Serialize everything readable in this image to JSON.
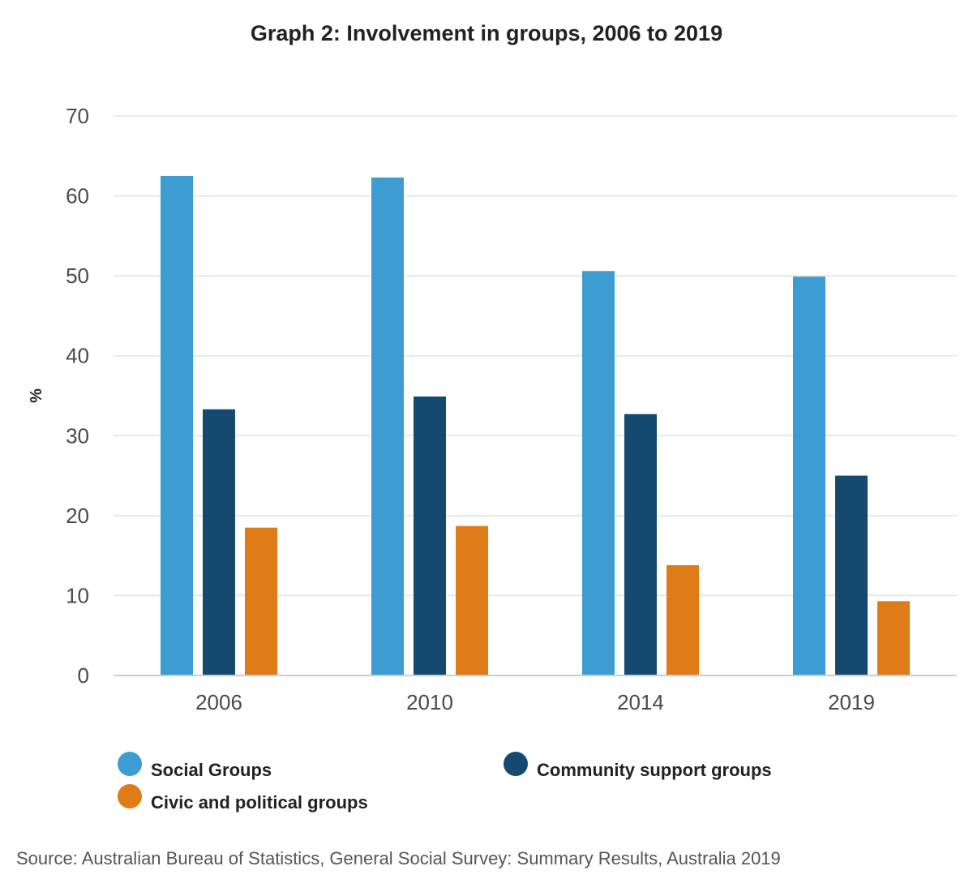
{
  "chart_data": {
    "type": "bar",
    "title": "Graph 2: Involvement in groups, 2006 to 2019",
    "xlabel": "",
    "ylabel": "%",
    "categories": [
      "2006",
      "2010",
      "2014",
      "2019"
    ],
    "series": [
      {
        "name": "Social Groups",
        "color": "#3d9dd3",
        "values": [
          62.5,
          62.3,
          50.6,
          49.9
        ]
      },
      {
        "name": "Community support groups",
        "color": "#144a70",
        "values": [
          33.3,
          34.9,
          32.7,
          25.0
        ]
      },
      {
        "name": "Civic and political groups",
        "color": "#e07c17",
        "values": [
          18.5,
          18.7,
          13.8,
          9.3
        ]
      }
    ],
    "ylim": [
      0,
      70
    ],
    "yticks": [
      "0",
      "10",
      "20",
      "30",
      "40",
      "50",
      "60",
      "70"
    ],
    "grid": true,
    "legend_position": "bottom"
  },
  "source": "Source: Australian Bureau of Statistics, General Social Survey: Summary Results, Australia 2019"
}
